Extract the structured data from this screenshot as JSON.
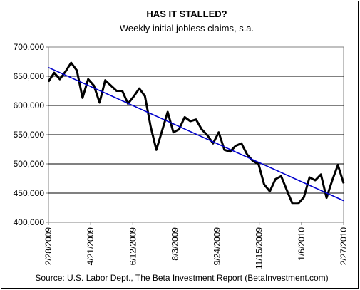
{
  "chart_data": {
    "type": "line",
    "title": "HAS IT STALLED?",
    "subtitle": "Weekly initial jobless claims, s.a.",
    "source": "Source: U.S. Labor Dept., The Beta Investment Report (BetaInvestment.com)",
    "xlabel": "",
    "ylabel": "",
    "ylim": [
      400000,
      700000
    ],
    "y_ticks": [
      400000,
      450000,
      500000,
      550000,
      600000,
      650000,
      700000
    ],
    "y_tick_labels": [
      "400,000",
      "450,000",
      "500,000",
      "550,000",
      "600,000",
      "650,000",
      "700,000"
    ],
    "x_tick_labels": [
      "2/28/2009",
      "4/21/2009",
      "6/12/2009",
      "8/3/2009",
      "9/24/2009",
      "11/15/2009",
      "1/6/2010",
      "2/27/2010"
    ],
    "x_tick_index": [
      0,
      7.43,
      14.86,
      22.29,
      29.71,
      37.14,
      44.57,
      52
    ],
    "grid": true,
    "series": [
      {
        "color": "#000000",
        "values": [
          641000,
          656000,
          645000,
          658000,
          673000,
          660000,
          613000,
          645000,
          634000,
          605000,
          643000,
          634000,
          625000,
          625000,
          603000,
          615000,
          629000,
          616000,
          564000,
          524000,
          556000,
          589000,
          554000,
          559000,
          580000,
          573000,
          576000,
          559000,
          549000,
          535000,
          554000,
          524000,
          521000,
          531000,
          535000,
          516000,
          505000,
          500000,
          465000,
          453000,
          474000,
          479000,
          455000,
          432000,
          432000,
          443000,
          477000,
          472000,
          482000,
          442000,
          472000,
          498000,
          467000
        ]
      },
      {
        "color": "#0000cc",
        "values": [
          665000,
          437000
        ]
      }
    ]
  }
}
